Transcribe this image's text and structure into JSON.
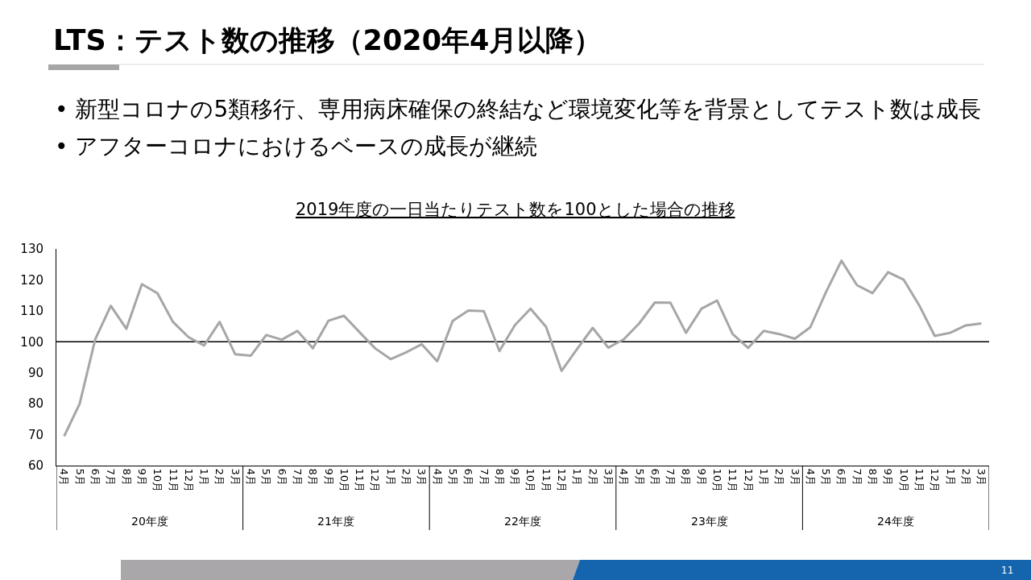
{
  "chart_data": {
    "type": "line",
    "title": "LTS：テスト数の推移（2020年4月以降）",
    "subtitle": "• 新型コロナの5類移行、専用病床確保の終結など環境変化等を背景としてテスト数は成長\n• アフターコロナにおけるベースの成長が継続",
    "annotations": [
      "2019年度の一日当たりテスト数を100とした場合の推移",
      "20年度",
      "21年度",
      "22年度",
      "23年度",
      "24年度",
      "11"
    ],
    "categories": [
      "4月",
      "5月",
      "6月",
      "7月",
      "8月",
      "9月",
      "10月",
      "11月",
      "12月",
      "1月",
      "2月",
      "3月",
      "4月",
      "5月",
      "6月",
      "7月",
      "8月",
      "9月",
      "10月",
      "11月",
      "12月",
      "1月",
      "2月",
      "3月",
      "4月",
      "5月",
      "6月",
      "7月",
      "8月",
      "9月",
      "10月",
      "11月",
      "12月",
      "1月",
      "2月",
      "3月",
      "4月",
      "5月",
      "6月",
      "7月",
      "8月",
      "9月",
      "10月",
      "11月",
      "12月",
      "1月",
      "2月",
      "3月",
      "4月",
      "5月",
      "6月",
      "7月",
      "8月",
      "9月",
      "10月",
      "11月",
      "12月",
      "1月",
      "2月",
      "3月"
    ],
    "series": [
      {
        "color": "#a6a6a6",
        "values": [
          69.5,
          80.0,
          100.8,
          111.6,
          104.2,
          118.6,
          115.7,
          106.4,
          101.5,
          98.8,
          106.4,
          96.0,
          95.5,
          102.2,
          100.7,
          103.5,
          97.9,
          106.8,
          108.4,
          103.1,
          97.9,
          94.4,
          96.6,
          99.2,
          93.7,
          106.8,
          110.1,
          109.9,
          97.0,
          105.4,
          110.7,
          104.8,
          90.6,
          97.7,
          104.5,
          98.1,
          100.8,
          106.0,
          112.7,
          112.6,
          102.9,
          110.7,
          113.3,
          102.5,
          98.0,
          103.5,
          102.5,
          101.0,
          104.7,
          116.0,
          126.2,
          118.3,
          115.7,
          122.5,
          120.1,
          111.8,
          101.9,
          102.9,
          105.3,
          105.9
        ]
      }
    ],
    "ylim": [
      60,
      130
    ],
    "yticks": [
      60,
      70,
      80,
      90,
      100,
      110,
      120,
      130
    ],
    "ref_lines": [
      {
        "axis": "y",
        "value": 100,
        "color": "#000000"
      }
    ],
    "grid": false,
    "marker": "none",
    "line_style": "solid"
  }
}
